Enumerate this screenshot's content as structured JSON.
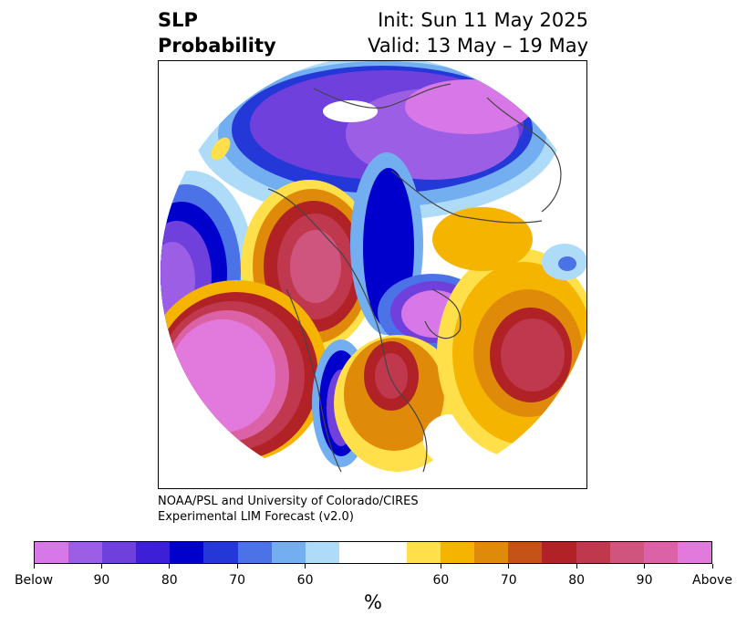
{
  "title": {
    "left_line1": "SLP",
    "left_line2": "Probability",
    "right_line1": "Init: Sun 11 May 2025",
    "right_line2": "Valid: 13 May – 19 May"
  },
  "credit": {
    "line1": "NOAA/PSL and University of Colorado/CIRES",
    "line2": "Experimental LIM Forecast (v2.0)"
  },
  "colorbar": {
    "colors": [
      "#d878e8",
      "#9d5ee6",
      "#7040dc",
      "#3c1fd6",
      "#0000cc",
      "#2438d8",
      "#4b72e6",
      "#72aef0",
      "#aedcf8",
      "#ffffff",
      "#ffffff",
      "#ffe04a",
      "#f5b400",
      "#e08a0a",
      "#c55318",
      "#b02226",
      "#c0384e",
      "#d0557e",
      "#dc62a8",
      "#e27ade"
    ],
    "ticks": [
      "Below",
      "90",
      "80",
      "70",
      "60",
      "60",
      "70",
      "80",
      "90",
      "Above"
    ],
    "unit": "%"
  }
}
